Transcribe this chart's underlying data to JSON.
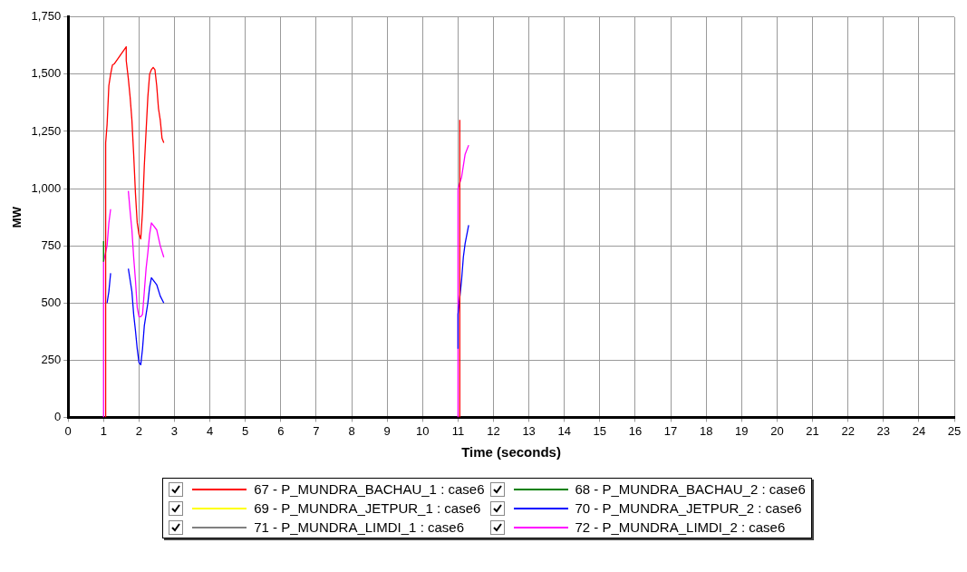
{
  "chart_data": {
    "type": "line",
    "xlabel": "Time (seconds)",
    "ylabel": "MW",
    "xlim": [
      0,
      25
    ],
    "xticks": [
      0,
      1,
      2,
      3,
      4,
      5,
      6,
      7,
      8,
      9,
      10,
      11,
      12,
      13,
      14,
      15,
      16,
      17,
      18,
      19,
      20,
      21,
      22,
      23,
      24,
      25
    ],
    "ylim": [
      0,
      1750
    ],
    "yticks": [
      {
        "value": 0,
        "label": "0"
      },
      {
        "value": 250,
        "label": "250"
      },
      {
        "value": 500,
        "label": "500"
      },
      {
        "value": 750,
        "label": "750"
      },
      {
        "value": 1000,
        "label": "1,000"
      },
      {
        "value": 1250,
        "label": "1,250"
      },
      {
        "value": 1500,
        "label": "1,500"
      },
      {
        "value": 1750,
        "label": "1,750"
      }
    ],
    "grid": true,
    "legend": "bottom",
    "marker": "none",
    "series": [
      {
        "name": "67 - P_MUNDRA_BACHAU_1 : case6",
        "color": "#ff0000",
        "x": [
          1.06,
          1.06,
          1.1,
          1.15,
          1.2,
          1.25,
          1.3,
          1.64,
          1.64,
          1.7,
          1.75,
          1.8,
          1.85,
          1.9,
          1.95,
          2.0,
          2.05,
          2.1,
          2.15,
          2.2,
          2.25,
          2.3,
          2.35,
          2.4,
          2.45,
          2.5,
          2.55,
          2.6,
          2.65,
          2.7,
          10.9,
          11.05,
          11.05
        ],
        "values": [
          0,
          1200,
          1280,
          1450,
          1500,
          1540,
          1545,
          1620,
          1560,
          1480,
          1400,
          1300,
          1150,
          980,
          850,
          800,
          780,
          900,
          1100,
          1250,
          1400,
          1500,
          1520,
          1530,
          1520,
          1450,
          1350,
          1300,
          1220,
          1200,
          null,
          0,
          1300
        ]
      },
      {
        "name": "68 - P_MUNDRA_BACHAU_2 : case6",
        "color": "#008000",
        "x": [
          1.0,
          1.0
        ],
        "values": [
          680,
          770
        ]
      },
      {
        "name": "69 - P_MUNDRA_JETPUR_1 : case6",
        "color": "#ffff00"
      },
      {
        "name": "70 - P_MUNDRA_JETPUR_2 : case6",
        "color": "#0000ff",
        "x": [
          1.1,
          1.15,
          1.2,
          1.4,
          1.7,
          1.75,
          1.8,
          1.85,
          1.9,
          1.95,
          2.0,
          2.05,
          2.1,
          2.15,
          2.2,
          2.25,
          2.3,
          2.35,
          2.5,
          2.6,
          2.7,
          10.9,
          11.0,
          11.0,
          11.1,
          11.15,
          11.2,
          11.3
        ],
        "values": [
          500,
          550,
          630,
          null,
          650,
          600,
          550,
          450,
          380,
          300,
          240,
          230,
          300,
          400,
          450,
          500,
          570,
          610,
          580,
          530,
          500,
          null,
          300,
          450,
          600,
          700,
          760,
          840
        ]
      },
      {
        "name": "71 - P_MUNDRA_LIMDI_1 : case6",
        "color": "#808080"
      },
      {
        "name": "72 - P_MUNDRA_LIMDI_2 : case6",
        "color": "#ff00ff",
        "x": [
          1.0,
          1.0,
          1.1,
          1.15,
          1.2,
          1.4,
          1.7,
          1.75,
          1.8,
          1.85,
          1.9,
          1.95,
          2.0,
          2.05,
          2.1,
          2.15,
          2.2,
          2.25,
          2.3,
          2.35,
          2.5,
          2.6,
          2.7,
          10.9,
          11.0,
          11.0,
          11.1,
          11.15,
          11.2,
          11.3
        ],
        "values": [
          0,
          680,
          750,
          850,
          910,
          null,
          990,
          900,
          820,
          700,
          600,
          480,
          440,
          440,
          450,
          550,
          650,
          720,
          800,
          850,
          820,
          750,
          700,
          null,
          0,
          1000,
          1050,
          1100,
          1150,
          1190
        ]
      }
    ]
  }
}
